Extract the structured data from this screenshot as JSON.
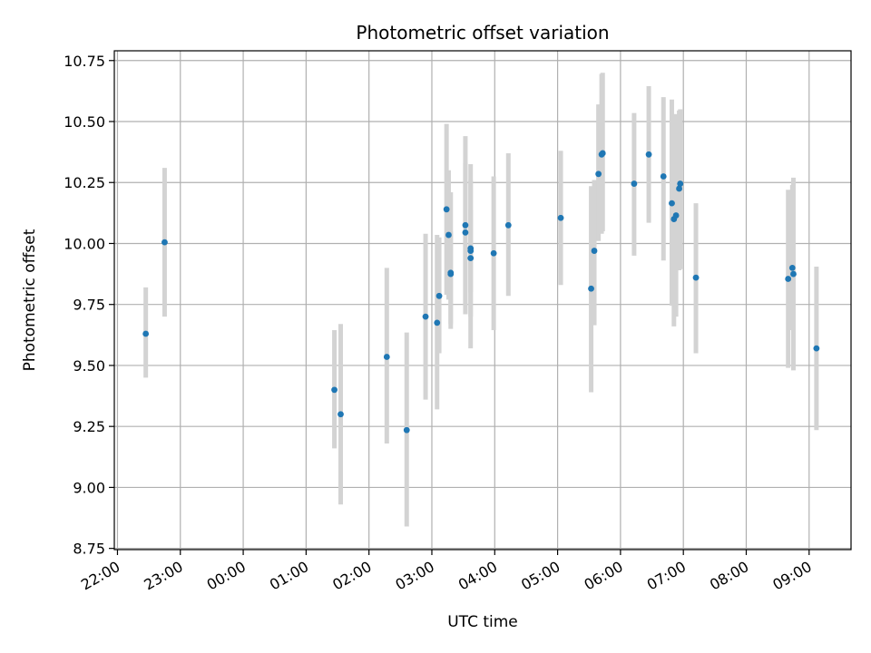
{
  "chart_data": {
    "type": "scatter",
    "title": "Photometric offset variation",
    "xlabel": "UTC time",
    "ylabel": "Photometric offset",
    "x_ticks": [
      "22:00",
      "23:00",
      "00:00",
      "01:00",
      "02:00",
      "03:00",
      "04:00",
      "05:00",
      "06:00",
      "07:00",
      "08:00",
      "09:00"
    ],
    "y_ticks": [
      "8.75",
      "9.00",
      "9.25",
      "9.50",
      "9.75",
      "10.00",
      "10.25",
      "10.50",
      "10.75"
    ],
    "xlim": [
      "21:57",
      "09:40"
    ],
    "ylim": [
      8.745,
      10.79
    ],
    "grid": true,
    "point_color": "#1f77b4",
    "errorbar_color": "#d3d3d3",
    "points": [
      {
        "x": "22:27",
        "y": 9.63,
        "lo": 9.45,
        "hi": 9.82
      },
      {
        "x": "22:45",
        "y": 10.005,
        "lo": 9.7,
        "hi": 10.31
      },
      {
        "x": "01:27",
        "y": 9.4,
        "lo": 9.16,
        "hi": 9.645
      },
      {
        "x": "01:33",
        "y": 9.3,
        "lo": 8.93,
        "hi": 9.67
      },
      {
        "x": "02:17",
        "y": 9.535,
        "lo": 9.18,
        "hi": 9.9
      },
      {
        "x": "02:36",
        "y": 9.235,
        "lo": 8.84,
        "hi": 9.635
      },
      {
        "x": "02:54",
        "y": 9.7,
        "lo": 9.36,
        "hi": 10.04
      },
      {
        "x": "03:05",
        "y": 9.675,
        "lo": 9.32,
        "hi": 10.035
      },
      {
        "x": "03:07",
        "y": 9.785,
        "lo": 9.55,
        "hi": 10.025
      },
      {
        "x": "03:14",
        "y": 10.14,
        "lo": 9.79,
        "hi": 10.49
      },
      {
        "x": "03:16",
        "y": 10.035,
        "lo": 9.77,
        "hi": 10.3
      },
      {
        "x": "03:18",
        "y": 9.88,
        "lo": 9.65,
        "hi": 10.21
      },
      {
        "x": "03:18",
        "y": 9.875,
        "lo": 9.67,
        "hi": 10.05
      },
      {
        "x": "03:32",
        "y": 10.075,
        "lo": 9.71,
        "hi": 10.44
      },
      {
        "x": "03:32",
        "y": 10.045,
        "lo": 9.75,
        "hi": 10.33
      },
      {
        "x": "03:37",
        "y": 9.98,
        "lo": 9.7,
        "hi": 10.26
      },
      {
        "x": "03:37",
        "y": 9.97,
        "lo": 9.8,
        "hi": 10.14
      },
      {
        "x": "03:37",
        "y": 9.94,
        "lo": 9.57,
        "hi": 10.325
      },
      {
        "x": "03:59",
        "y": 9.96,
        "lo": 9.645,
        "hi": 10.275
      },
      {
        "x": "04:13",
        "y": 10.075,
        "lo": 9.785,
        "hi": 10.37
      },
      {
        "x": "05:03",
        "y": 10.105,
        "lo": 9.83,
        "hi": 10.38
      },
      {
        "x": "05:32",
        "y": 9.815,
        "lo": 9.39,
        "hi": 10.235
      },
      {
        "x": "05:35",
        "y": 9.97,
        "lo": 9.665,
        "hi": 10.26
      },
      {
        "x": "05:39",
        "y": 10.285,
        "lo": 10.01,
        "hi": 10.57
      },
      {
        "x": "05:42",
        "y": 10.365,
        "lo": 10.04,
        "hi": 10.695
      },
      {
        "x": "05:43",
        "y": 10.37,
        "lo": 10.05,
        "hi": 10.7
      },
      {
        "x": "06:13",
        "y": 10.245,
        "lo": 9.95,
        "hi": 10.535
      },
      {
        "x": "06:27",
        "y": 10.365,
        "lo": 10.085,
        "hi": 10.645
      },
      {
        "x": "06:41",
        "y": 10.275,
        "lo": 9.93,
        "hi": 10.6
      },
      {
        "x": "06:49",
        "y": 10.165,
        "lo": 9.745,
        "hi": 10.59
      },
      {
        "x": "06:51",
        "y": 10.1,
        "lo": 9.66,
        "hi": 10.53
      },
      {
        "x": "06:53",
        "y": 10.115,
        "lo": 9.7,
        "hi": 10.53
      },
      {
        "x": "06:56",
        "y": 10.225,
        "lo": 9.89,
        "hi": 10.545
      },
      {
        "x": "06:57",
        "y": 10.245,
        "lo": 9.895,
        "hi": 10.55
      },
      {
        "x": "07:12",
        "y": 9.86,
        "lo": 9.55,
        "hi": 10.165
      },
      {
        "x": "08:40",
        "y": 9.855,
        "lo": 9.49,
        "hi": 10.22
      },
      {
        "x": "08:44",
        "y": 9.9,
        "lo": 9.645,
        "hi": 10.24
      },
      {
        "x": "08:45",
        "y": 9.875,
        "lo": 9.48,
        "hi": 10.27
      },
      {
        "x": "09:07",
        "y": 9.57,
        "lo": 9.235,
        "hi": 9.905
      }
    ]
  }
}
